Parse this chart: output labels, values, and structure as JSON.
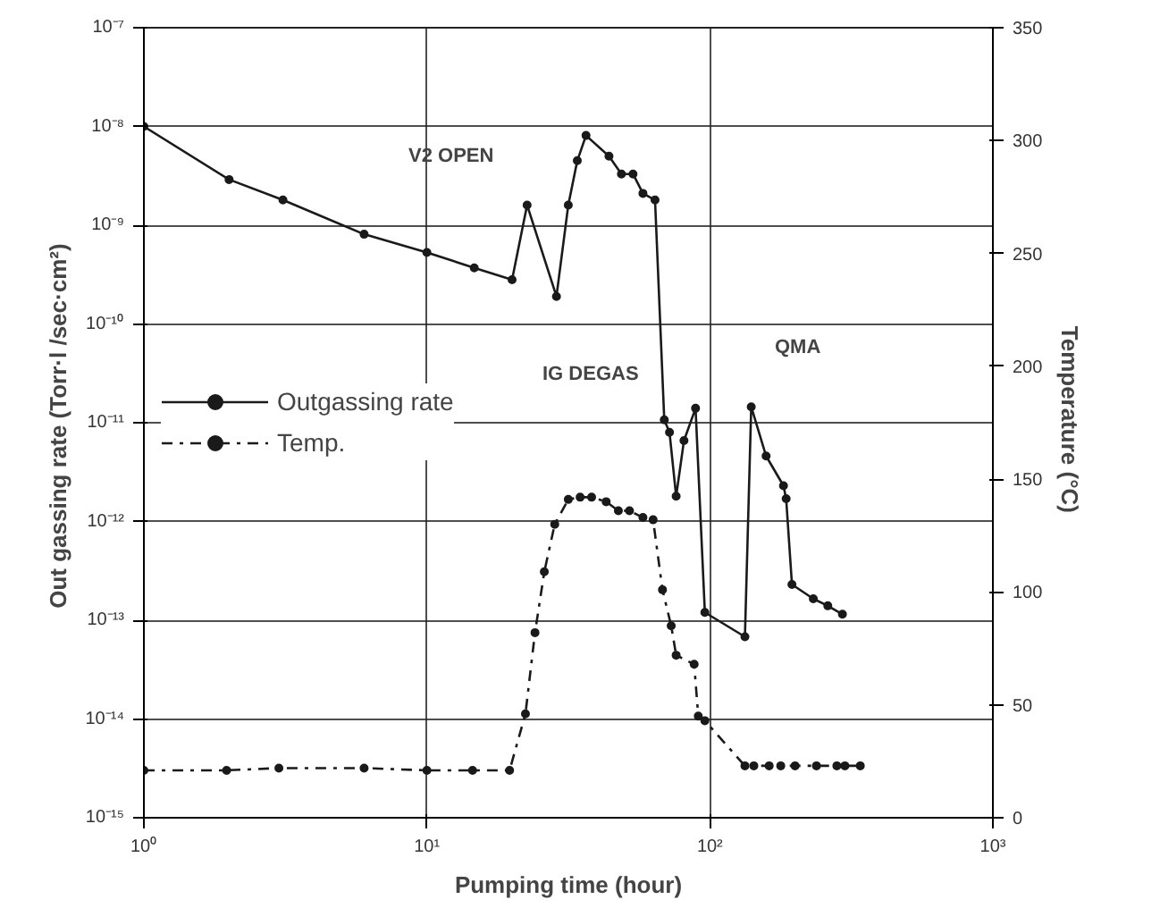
{
  "chart_data": {
    "type": "line",
    "xlabel": "Pumping time (hour)",
    "ylabel": "Out gassing rate  (Torr·l /sec·cm²)",
    "y2label": "Temperature  (°C)",
    "log": "xy",
    "grid": true,
    "legend": "left",
    "marker": "circle",
    "xlim": [
      1,
      1000
    ],
    "xticks": [
      {
        "value": 1,
        "label": "10⁰"
      },
      {
        "value": 10,
        "label": "10¹"
      },
      {
        "value": 100,
        "label": "10²"
      },
      {
        "value": 1000,
        "label": "10³"
      }
    ],
    "ylim": [
      1e-15,
      1e-07
    ],
    "yticks": [
      {
        "value": 1e-15,
        "label": "10⁻¹⁵"
      },
      {
        "value": 1e-14,
        "label": "10⁻¹⁴"
      },
      {
        "value": 1e-13,
        "label": "10⁻¹³"
      },
      {
        "value": 1e-12,
        "label": "10⁻¹²"
      },
      {
        "value": 1e-11,
        "label": "10⁻¹¹"
      },
      {
        "value": 1e-10,
        "label": "10⁻¹⁰"
      },
      {
        "value": 1e-09,
        "label": "10⁻⁹"
      },
      {
        "value": 1e-08,
        "label": "10⁻⁸"
      },
      {
        "value": 1e-07,
        "label": "10⁻⁷"
      }
    ],
    "y2lim": [
      0,
      350
    ],
    "y2ticks": [
      0,
      50,
      100,
      150,
      200,
      250,
      300,
      350
    ],
    "series": [
      {
        "name": "Outgassing rate",
        "color": "#1a1a1a",
        "line_style": "solid",
        "x": [
          1,
          2.0,
          3.1,
          6.0,
          10,
          14.7,
          20,
          22.6,
          28.7,
          31.6,
          34,
          36.5,
          44,
          48.7,
          53.5,
          58,
          64,
          69,
          72,
          76,
          81,
          89,
          96,
          133,
          140,
          158,
          182,
          186,
          195,
          232,
          261,
          294
        ],
        "values": [
          1e-08,
          2.9e-09,
          1.8e-09,
          8.1e-10,
          5.3e-10,
          3.7e-10,
          2.8e-10,
          1.6e-09,
          1.9e-10,
          1.6e-09,
          4.5e-09,
          8.1e-09,
          5e-09,
          3.3e-09,
          3.3e-09,
          2.1e-09,
          1.8e-09,
          1.07e-11,
          8e-12,
          1.8e-12,
          6.6e-12,
          1.4e-11,
          1.2e-13,
          6.8e-14,
          1.45e-11,
          4.6e-12,
          2.3e-12,
          1.7e-12,
          2.3e-13,
          1.65e-13,
          1.4e-13,
          1.15e-13
        ]
      },
      {
        "name": "Temp.",
        "color": "#1a1a1a",
        "line_style": "dashed",
        "axis": "y2",
        "x": [
          1,
          1.96,
          3.0,
          6.0,
          10,
          14.5,
          19.6,
          22.3,
          24.1,
          26.0,
          28.3,
          31.6,
          34.8,
          38.2,
          43,
          47.5,
          52,
          58,
          63,
          68,
          73,
          76,
          88,
          91,
          96,
          133,
          143,
          162,
          178,
          200,
          238,
          281,
          300,
          340
        ],
        "values": [
          21,
          21,
          22,
          22,
          21,
          21,
          21,
          46,
          82,
          109,
          130,
          141,
          142,
          142,
          140,
          136,
          136,
          133,
          132,
          101,
          85,
          72,
          68,
          45,
          43,
          23,
          23,
          23,
          23,
          23,
          23,
          23,
          23,
          23
        ]
      }
    ],
    "annotations": [
      "V2 OPEN",
      "IG DEGAS",
      "QMA"
    ]
  }
}
